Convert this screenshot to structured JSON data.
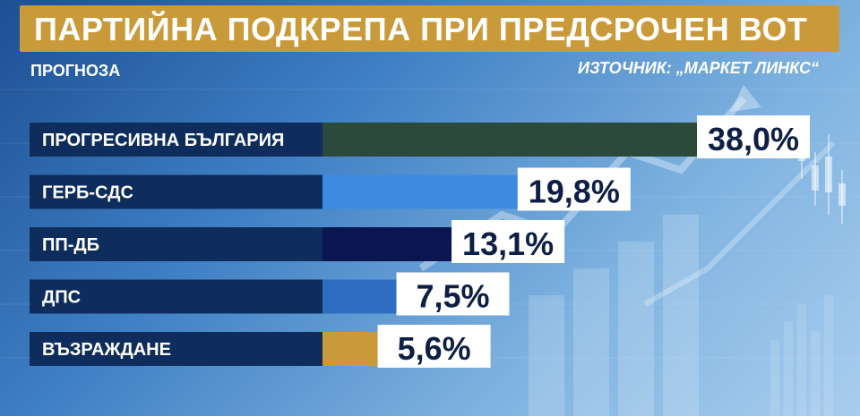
{
  "header": {
    "title": "ПАРТИЙНА ПОДКРЕПА ПРИ ПРЕДСРОЧЕН ВОТ",
    "subtitle": "ПРОГНОЗА",
    "source": "ИЗТОЧНИК: „МАРКЕТ ЛИНКС“"
  },
  "colors": {
    "title_bar": "#c99a3a",
    "label_panel": "#0f2d5c"
  },
  "chart_data": {
    "type": "bar",
    "orientation": "horizontal",
    "title": "ПАРТИЙНА ПОДКРЕПА ПРИ ПРЕДСРОЧЕН ВОТ",
    "categories": [
      "ПРОГРЕСИВНА БЪЛГАРИЯ",
      "ГЕРБ-СДС",
      "ПП-ДБ",
      "ДПС",
      "ВЪЗРАЖДАНЕ"
    ],
    "values": [
      38.0,
      19.8,
      13.1,
      7.5,
      5.6
    ],
    "value_labels": [
      "38,0%",
      "19,8%",
      "13,1%",
      "7,5%",
      "5,6%"
    ],
    "bar_colors": [
      "#2b4a3c",
      "#3d8be0",
      "#0b1550",
      "#2e6ec0",
      "#c99a3a"
    ],
    "unit": "%",
    "legend": "none",
    "grid": false
  }
}
